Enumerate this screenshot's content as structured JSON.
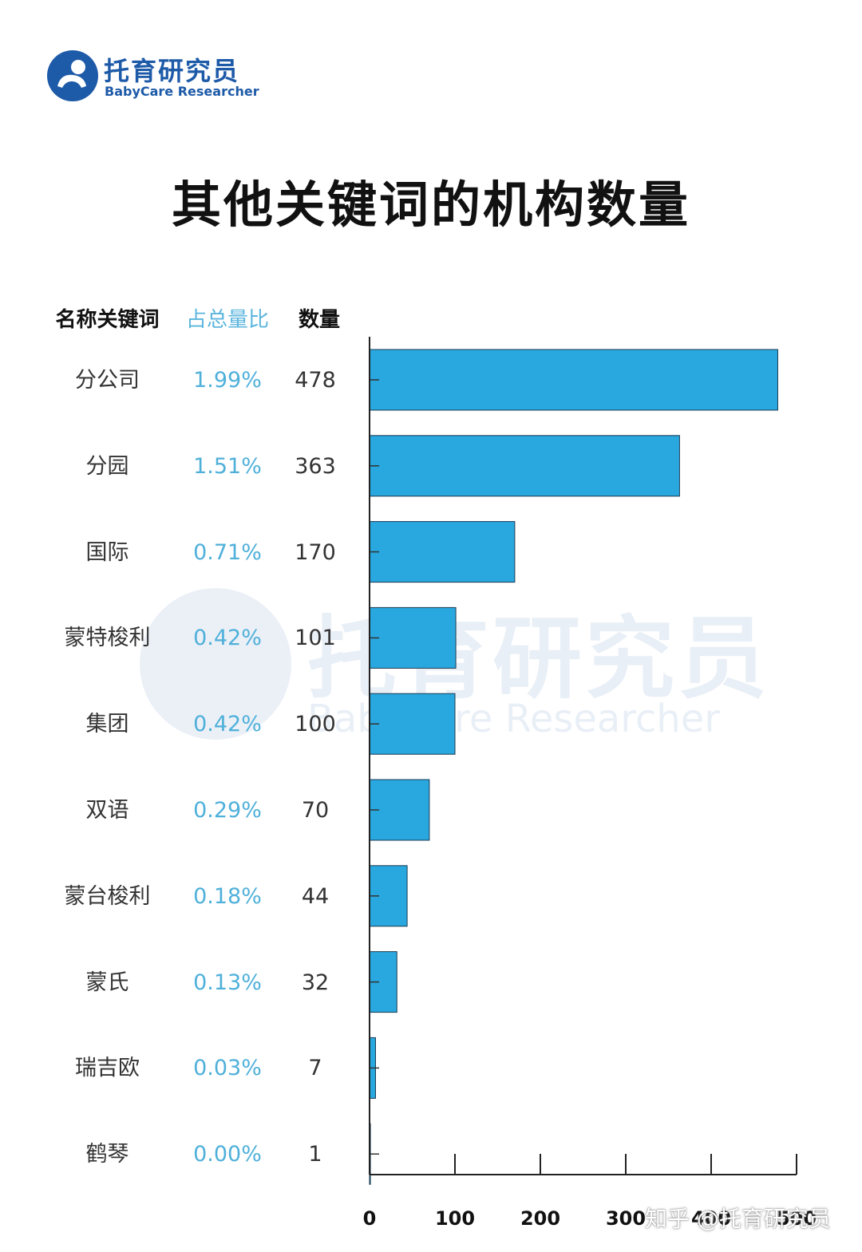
{
  "brand": {
    "name_cn": "托育研究员",
    "name_en": "BabyCare Researcher",
    "color": "#1d5aa8"
  },
  "title": "其他关键词的机构数量",
  "table_header": {
    "name": "名称关键词",
    "share": "占总量比",
    "count": "数量"
  },
  "rows": [
    {
      "name": "分公司",
      "share": "1.99%",
      "count": "478"
    },
    {
      "name": "分园",
      "share": "1.51%",
      "count": "363"
    },
    {
      "name": "国际",
      "share": "0.71%",
      "count": "170"
    },
    {
      "name": "蒙特梭利",
      "share": "0.42%",
      "count": "101"
    },
    {
      "name": "集团",
      "share": "0.42%",
      "count": "100"
    },
    {
      "name": "双语",
      "share": "0.29%",
      "count": "70"
    },
    {
      "name": "蒙台梭利",
      "share": "0.18%",
      "count": "44"
    },
    {
      "name": "蒙氏",
      "share": "0.13%",
      "count": "32"
    },
    {
      "name": "瑞吉欧",
      "share": "0.03%",
      "count": "7"
    },
    {
      "name": "鹤琴",
      "share": "0.00%",
      "count": "1"
    }
  ],
  "chart_data": {
    "type": "bar",
    "orientation": "horizontal",
    "title": "其他关键词的机构数量",
    "categories": [
      "分公司",
      "分园",
      "国际",
      "蒙特梭利",
      "集团",
      "双语",
      "蒙台梭利",
      "蒙氏",
      "瑞吉欧",
      "鹤琴"
    ],
    "values": [
      478,
      363,
      170,
      101,
      100,
      70,
      44,
      32,
      7,
      1
    ],
    "xlim": [
      0,
      500
    ],
    "xticks": [
      0,
      100,
      200,
      300,
      400,
      500
    ],
    "xtick_labels": [
      "0",
      "100",
      "200",
      "300",
      "400",
      "500"
    ],
    "bar_color": "#29a8e0",
    "grid": false
  },
  "watermark": {
    "cn": "托育研究员",
    "en": "BabyCare Researcher"
  },
  "footer": "知乎 @托育研究员"
}
